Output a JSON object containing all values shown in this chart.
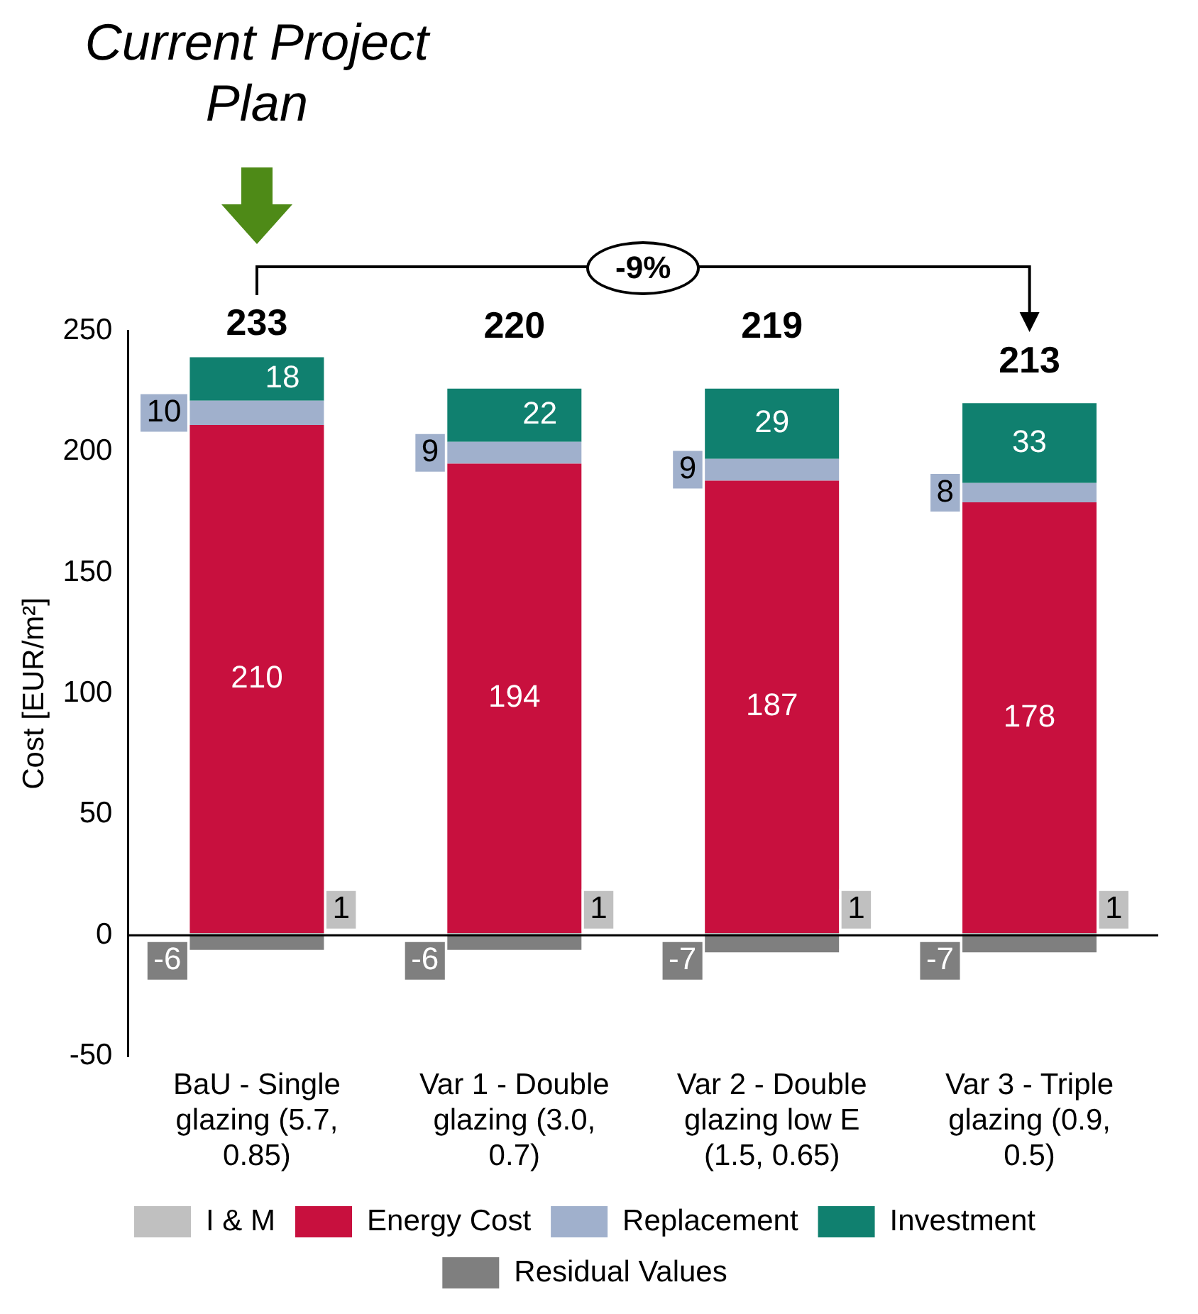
{
  "chart_data": {
    "type": "bar",
    "stacked": true,
    "categories": [
      "BaU - Single glazing (5.7, 0.85)",
      "Var 1 - Double glazing (3.0, 0.7)",
      "Var 2 - Double glazing low E (1.5, 0.65)",
      "Var 3 - Triple glazing (0.9, 0.5)"
    ],
    "series": [
      {
        "name": "I & M",
        "color": "#c0c0c0",
        "values": [
          1,
          1,
          1,
          1
        ]
      },
      {
        "name": "Energy Cost",
        "color": "#c8103e",
        "values": [
          210,
          194,
          187,
          178
        ]
      },
      {
        "name": "Replacement",
        "color": "#a0b0cc",
        "values": [
          10,
          9,
          9,
          8
        ]
      },
      {
        "name": "Investment",
        "color": "#10806f",
        "values": [
          18,
          22,
          29,
          33
        ]
      },
      {
        "name": "Residual Values",
        "color": "#7f7f7f",
        "values": [
          -6,
          -6,
          -7,
          -7
        ]
      }
    ],
    "totals": [
      "233",
      "220",
      "219",
      "213"
    ],
    "data_labels": true,
    "ylabel": "Cost [EUR/m²]",
    "ylim": [
      -50,
      250
    ],
    "yticks": [
      -50,
      0,
      50,
      100,
      150,
      200,
      250
    ],
    "grid": false,
    "legend": "bottom",
    "ref_lines": [
      {
        "axis": "y",
        "value": 0,
        "color": "#000000"
      }
    ],
    "annotations": [
      "Current Project Plan",
      "-9%"
    ]
  }
}
